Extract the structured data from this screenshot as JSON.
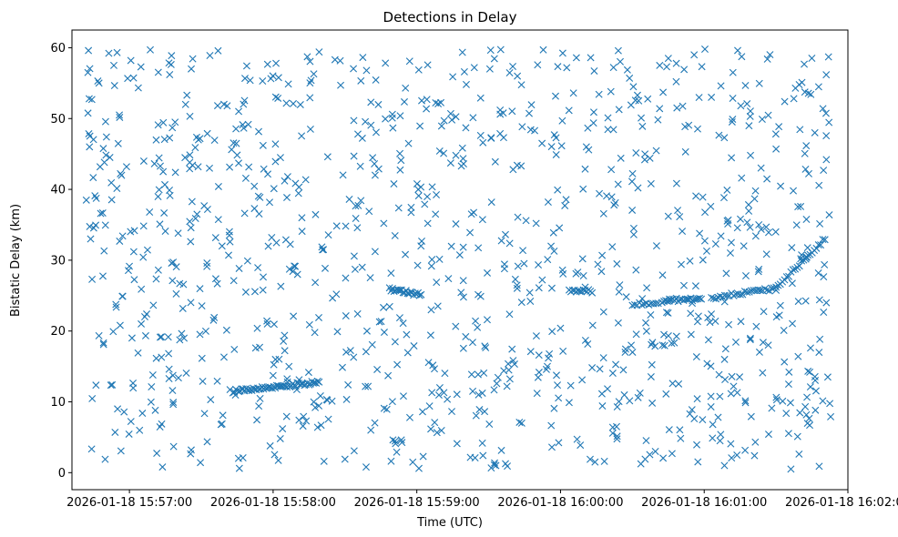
{
  "chart_data": {
    "type": "scatter",
    "title": "Detections in Delay",
    "xlabel": "Time (UTC)",
    "ylabel": "Bistatic Delay (km)",
    "x_unit": "minutes since 2026-01-18 15:56:00",
    "xlim": [
      0.6,
      6.0
    ],
    "ylim": [
      -2.4,
      62.5
    ],
    "x_ticks": [
      {
        "value": 1,
        "label": "2026-01-18 15:57:00"
      },
      {
        "value": 2,
        "label": "2026-01-18 15:58:00"
      },
      {
        "value": 3,
        "label": "2026-01-18 15:59:00"
      },
      {
        "value": 4,
        "label": "2026-01-18 16:00:00"
      },
      {
        "value": 5,
        "label": "2026-01-18 16:01:00"
      },
      {
        "value": 6,
        "label": "2026-01-18 16:02:00"
      }
    ],
    "y_ticks": [
      0,
      10,
      20,
      30,
      40,
      50,
      60
    ],
    "marker": "x",
    "color": "#1f77b4",
    "series": [
      {
        "name": "Detections",
        "track_segments": [
          {
            "x_start": 1.72,
            "y_start": 11.5,
            "x_end": 2.32,
            "y_end": 12.8,
            "count": 60
          },
          {
            "x_start": 2.81,
            "y_start": 25.9,
            "x_end": 3.03,
            "y_end": 25.1,
            "count": 22
          },
          {
            "x_start": 4.06,
            "y_start": 25.8,
            "x_end": 4.22,
            "y_end": 25.6,
            "count": 14
          },
          {
            "x_start": 4.5,
            "y_start": 23.8,
            "x_end": 4.68,
            "y_end": 23.9,
            "count": 12
          },
          {
            "x_start": 4.72,
            "y_start": 24.3,
            "x_end": 4.98,
            "y_end": 24.6,
            "count": 22
          },
          {
            "x_start": 5.05,
            "y_start": 24.7,
            "x_end": 5.5,
            "y_end": 26.0,
            "count": 30
          },
          {
            "x_start": 5.5,
            "y_start": 26.0,
            "x_end": 5.84,
            "y_end": 33.0,
            "count": 24
          }
        ],
        "clutter_points": [
          [
            0.72,
            52.8
          ],
          [
            0.73,
            33.0
          ],
          [
            0.74,
            27.3
          ],
          [
            0.76,
            39.1
          ],
          [
            0.78,
            55.3
          ],
          [
            0.8,
            36.6
          ],
          [
            0.82,
            18.1
          ],
          [
            0.84,
            47.4
          ],
          [
            0.88,
            12.4
          ],
          [
            0.9,
            5.7
          ],
          [
            0.93,
            50.5
          ],
          [
            0.95,
            24.9
          ],
          [
            0.98,
            43.2
          ],
          [
            1.01,
            58.2
          ],
          [
            1.03,
            31.2
          ],
          [
            1.06,
            16.9
          ],
          [
            1.08,
            57.3
          ],
          [
            1.1,
            44.0
          ],
          [
            1.12,
            22.4
          ],
          [
            1.14,
            36.8
          ],
          [
            1.18,
            8.8
          ],
          [
            1.2,
            49.1
          ],
          [
            1.23,
            0.8
          ],
          [
            1.25,
            34.1
          ],
          [
            1.28,
            56.2
          ],
          [
            1.3,
            11.6
          ],
          [
            1.32,
            42.4
          ],
          [
            1.35,
            26.7
          ],
          [
            1.38,
            19.0
          ],
          [
            1.4,
            53.3
          ],
          [
            1.43,
            3.2
          ],
          [
            1.46,
            35.9
          ],
          [
            1.48,
            47.0
          ],
          [
            1.51,
            12.9
          ],
          [
            1.54,
            29.6
          ],
          [
            1.56,
            58.9
          ],
          [
            1.59,
            21.9
          ],
          [
            1.62,
            40.4
          ],
          [
            1.65,
            8.1
          ],
          [
            1.68,
            51.8
          ],
          [
            1.7,
            32.6
          ],
          [
            1.73,
            17.4
          ],
          [
            1.76,
            43.7
          ],
          [
            1.79,
            2.1
          ],
          [
            1.81,
            25.5
          ],
          [
            1.84,
            55.4
          ],
          [
            1.87,
            37.3
          ],
          [
            1.9,
            9.4
          ],
          [
            1.93,
            46.2
          ],
          [
            1.96,
            21.0
          ],
          [
            1.99,
            33.2
          ],
          [
            2.02,
            57.8
          ],
          [
            2.05,
            4.8
          ],
          [
            2.08,
            41.2
          ],
          [
            2.11,
            15.0
          ],
          [
            2.14,
            52.1
          ],
          [
            2.17,
            28.0
          ],
          [
            2.2,
            36.0
          ],
          [
            2.23,
            7.3
          ],
          [
            2.26,
            48.5
          ],
          [
            2.29,
            19.8
          ],
          [
            2.32,
            59.4
          ],
          [
            2.35,
            31.5
          ],
          [
            2.38,
            44.6
          ],
          [
            2.41,
            10.1
          ],
          [
            2.44,
            25.2
          ],
          [
            2.47,
            54.7
          ],
          [
            2.5,
            1.9
          ],
          [
            2.53,
            38.6
          ],
          [
            2.56,
            16.3
          ],
          [
            2.59,
            47.8
          ],
          [
            2.62,
            29.0
          ],
          [
            2.65,
            56.8
          ],
          [
            2.68,
            6.0
          ],
          [
            2.71,
            42.0
          ],
          [
            2.74,
            21.3
          ],
          [
            2.77,
            35.2
          ],
          [
            2.8,
            13.7
          ],
          [
            2.83,
            50.6
          ],
          [
            2.86,
            2.9
          ],
          [
            2.89,
            44.1
          ],
          [
            2.92,
            30.8
          ],
          [
            2.95,
            58.1
          ],
          [
            2.98,
            17.9
          ],
          [
            3.01,
            40.0
          ],
          [
            3.04,
            8.6
          ],
          [
            3.07,
            52.7
          ],
          [
            3.1,
            23.0
          ],
          [
            3.13,
            36.5
          ],
          [
            3.16,
            12.0
          ],
          [
            3.19,
            49.7
          ],
          [
            3.22,
            27.4
          ],
          [
            3.25,
            55.9
          ],
          [
            3.28,
            4.1
          ],
          [
            3.31,
            43.3
          ],
          [
            3.34,
            19.2
          ],
          [
            3.37,
            33.9
          ],
          [
            3.4,
            57.2
          ],
          [
            3.43,
            11.0
          ],
          [
            3.46,
            46.6
          ],
          [
            3.49,
            21.6
          ],
          [
            3.52,
            38.2
          ],
          [
            3.55,
            1.0
          ],
          [
            3.58,
            51.2
          ],
          [
            3.61,
            28.8
          ],
          [
            3.64,
            14.5
          ],
          [
            3.67,
            42.8
          ],
          [
            3.7,
            56.0
          ],
          [
            3.73,
            7.0
          ],
          [
            3.76,
            35.6
          ],
          [
            3.79,
            24.2
          ],
          [
            3.82,
            48.3
          ],
          [
            3.85,
            16.6
          ],
          [
            3.88,
            59.7
          ],
          [
            3.91,
            30.1
          ],
          [
            3.94,
            3.6
          ],
          [
            3.97,
            44.9
          ],
          [
            4.0,
            20.4
          ],
          [
            4.03,
            37.7
          ],
          [
            4.06,
            9.9
          ],
          [
            4.09,
            53.6
          ],
          [
            4.12,
            28.3
          ],
          [
            4.15,
            13.1
          ],
          [
            4.18,
            46.0
          ],
          [
            4.21,
            58.6
          ],
          [
            4.24,
            1.5
          ],
          [
            4.27,
            39.4
          ],
          [
            4.3,
            22.7
          ],
          [
            4.33,
            50.1
          ],
          [
            4.36,
            31.9
          ],
          [
            4.39,
            6.5
          ],
          [
            4.42,
            44.4
          ],
          [
            4.45,
            17.0
          ],
          [
            4.48,
            55.7
          ],
          [
            4.51,
            34.5
          ],
          [
            4.54,
            10.6
          ],
          [
            4.57,
            48.9
          ],
          [
            4.6,
            26.1
          ],
          [
            4.63,
            40.8
          ],
          [
            4.66,
            3.0
          ],
          [
            4.69,
            57.5
          ],
          [
            4.72,
            19.5
          ],
          [
            4.75,
            36.2
          ],
          [
            4.78,
            12.6
          ],
          [
            4.81,
            51.5
          ],
          [
            4.84,
            29.4
          ],
          [
            4.87,
            45.3
          ],
          [
            4.9,
            8.3
          ],
          [
            4.93,
            59.0
          ],
          [
            4.96,
            22.1
          ],
          [
            4.99,
            38.9
          ],
          [
            5.02,
            15.4
          ],
          [
            5.05,
            53.0
          ],
          [
            5.08,
            32.3
          ],
          [
            5.11,
            4.5
          ],
          [
            5.14,
            47.3
          ],
          [
            5.17,
            20.9
          ],
          [
            5.2,
            56.5
          ],
          [
            5.23,
            11.3
          ],
          [
            5.26,
            41.6
          ],
          [
            5.29,
            27.8
          ],
          [
            5.32,
            50.3
          ],
          [
            5.35,
            2.4
          ],
          [
            5.38,
            35.0
          ],
          [
            5.41,
            18.4
          ],
          [
            5.44,
            58.4
          ],
          [
            5.47,
            9.1
          ],
          [
            5.5,
            45.7
          ],
          [
            5.53,
            23.6
          ],
          [
            5.56,
            52.4
          ],
          [
            5.59,
            14.2
          ],
          [
            5.62,
            39.8
          ],
          [
            5.65,
            5.1
          ],
          [
            5.68,
            55.1
          ],
          [
            5.71,
            30.4
          ],
          [
            5.74,
            17.6
          ],
          [
            5.77,
            48.0
          ],
          [
            5.8,
            0.9
          ],
          [
            5.83,
            42.7
          ],
          [
            5.85,
            24.0
          ],
          [
            5.86,
            13.5
          ],
          [
            5.87,
            36.4
          ],
          [
            5.88,
            7.9
          ],
          [
            5.85,
            44.2
          ]
        ]
      }
    ]
  }
}
